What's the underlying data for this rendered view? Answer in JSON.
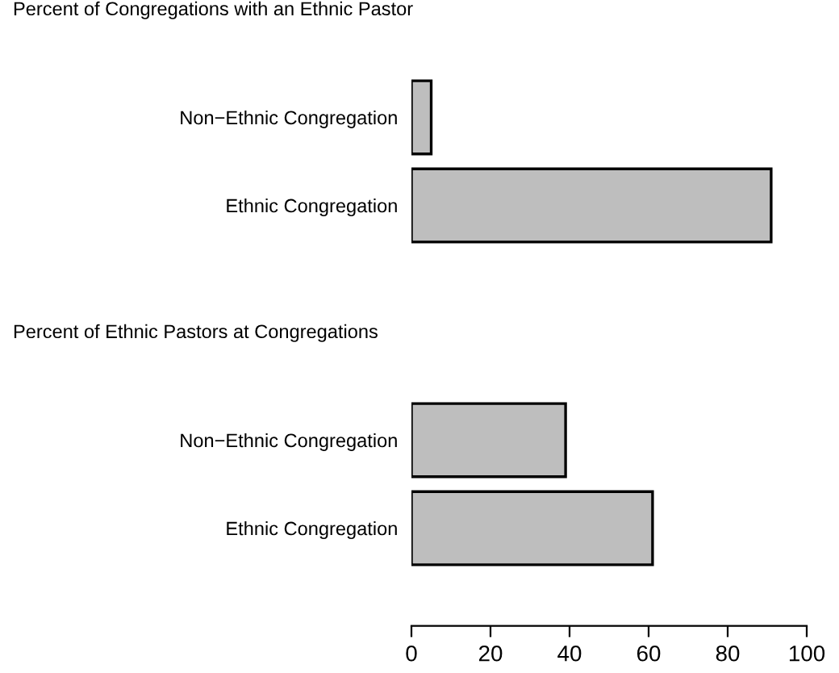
{
  "chart_data": [
    {
      "type": "bar",
      "orientation": "horizontal",
      "title": "Percent of Congregations with an Ethnic Pastor",
      "categories": [
        "Non−Ethnic Congregation",
        "Ethnic Congregation"
      ],
      "values": [
        5,
        91
      ],
      "color": "#bebebe",
      "xlim": [
        0,
        100
      ],
      "tick_labels": "y",
      "grid": false,
      "legend": false
    },
    {
      "type": "bar",
      "orientation": "horizontal",
      "title": "Percent of Ethnic Pastors at Congregations",
      "categories": [
        "Non−Ethnic Congregation",
        "Ethnic Congregation"
      ],
      "values": [
        39,
        61
      ],
      "color": "#bebebe",
      "xlim": [
        0,
        100
      ],
      "xticks": [
        0,
        20,
        40,
        60,
        80,
        100
      ],
      "grid": false,
      "legend": false
    }
  ]
}
